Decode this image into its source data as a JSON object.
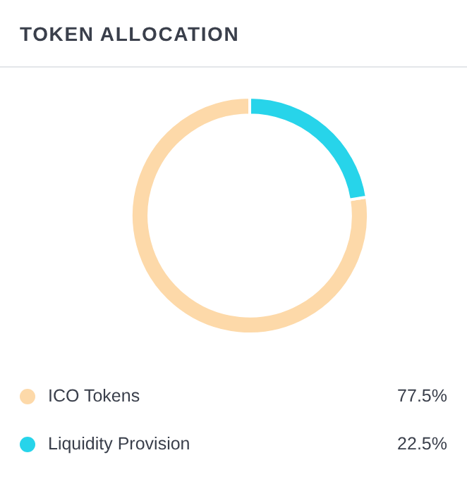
{
  "chart_data": {
    "type": "donut",
    "title": "TOKEN ALLOCATION",
    "categories": [
      "ICO Tokens",
      "Liquidity Provision"
    ],
    "values": [
      77.5,
      22.5
    ],
    "colors": [
      "#fdd9a9",
      "#27d4ea"
    ],
    "value_labels": [
      "77.5%",
      "22.5%"
    ],
    "legend": "bottom"
  }
}
